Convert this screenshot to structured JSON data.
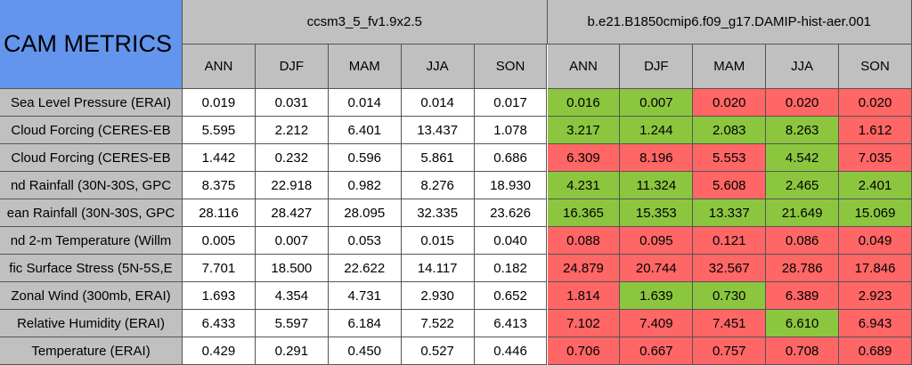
{
  "title": "CAM METRICS",
  "groups": [
    "ccsm3_5_fv1.9x2.5",
    "b.e21.B1850cmip6.f09_g17.DAMIP-hist-aer.001"
  ],
  "seasons": [
    "ANN",
    "DJF",
    "MAM",
    "JJA",
    "SON",
    "ANN",
    "DJF",
    "MAM",
    "JJA",
    "SON"
  ],
  "rows": [
    {
      "label": "Sea Level Pressure (ERAI)",
      "values": [
        "0.019",
        "0.031",
        "0.014",
        "0.014",
        "0.017",
        "0.016",
        "0.007",
        "0.020",
        "0.020",
        "0.020"
      ],
      "colors": [
        "#8cc63f",
        "#8cc63f",
        "#ff6666",
        "#ff6666",
        "#ff6666"
      ]
    },
    {
      "label": "Cloud Forcing (CERES-EB",
      "values": [
        "5.595",
        "2.212",
        "6.401",
        "13.437",
        "1.078",
        "3.217",
        "1.244",
        "2.083",
        "8.263",
        "1.612"
      ],
      "colors": [
        "#8cc63f",
        "#8cc63f",
        "#8cc63f",
        "#8cc63f",
        "#ff6666"
      ]
    },
    {
      "label": "Cloud Forcing (CERES-EB",
      "values": [
        "1.442",
        "0.232",
        "0.596",
        "5.861",
        "0.686",
        "6.309",
        "8.196",
        "5.553",
        "4.542",
        "7.035"
      ],
      "colors": [
        "#ff6666",
        "#ff6666",
        "#ff6666",
        "#8cc63f",
        "#ff6666"
      ]
    },
    {
      "label": "nd Rainfall (30N-30S, GPC",
      "values": [
        "8.375",
        "22.918",
        "0.982",
        "8.276",
        "18.930",
        "4.231",
        "11.324",
        "5.608",
        "2.465",
        "2.401"
      ],
      "colors": [
        "#8cc63f",
        "#8cc63f",
        "#ff6666",
        "#8cc63f",
        "#8cc63f"
      ]
    },
    {
      "label": "ean Rainfall (30N-30S, GPC",
      "values": [
        "28.116",
        "28.427",
        "28.095",
        "32.335",
        "23.626",
        "16.365",
        "15.353",
        "13.337",
        "21.649",
        "15.069"
      ],
      "colors": [
        "#8cc63f",
        "#8cc63f",
        "#8cc63f",
        "#8cc63f",
        "#8cc63f"
      ]
    },
    {
      "label": "nd 2-m Temperature (Willm",
      "values": [
        "0.005",
        "0.007",
        "0.053",
        "0.015",
        "0.040",
        "0.088",
        "0.095",
        "0.121",
        "0.086",
        "0.049"
      ],
      "colors": [
        "#ff6666",
        "#ff6666",
        "#ff6666",
        "#ff6666",
        "#ff6666"
      ]
    },
    {
      "label": "fic Surface Stress (5N-5S,E",
      "values": [
        "7.701",
        "18.500",
        "22.622",
        "14.117",
        "0.182",
        "24.879",
        "20.744",
        "32.567",
        "28.786",
        "17.846"
      ],
      "colors": [
        "#ff6666",
        "#ff6666",
        "#ff6666",
        "#ff6666",
        "#ff6666"
      ]
    },
    {
      "label": "Zonal Wind (300mb, ERAI)",
      "values": [
        "1.693",
        "4.354",
        "4.731",
        "2.930",
        "0.652",
        "1.814",
        "1.639",
        "0.730",
        "6.389",
        "2.923"
      ],
      "colors": [
        "#ff6666",
        "#8cc63f",
        "#8cc63f",
        "#ff6666",
        "#ff6666"
      ]
    },
    {
      "label": "Relative Humidity (ERAI)",
      "values": [
        "6.433",
        "5.597",
        "6.184",
        "7.522",
        "6.413",
        "7.102",
        "7.409",
        "7.451",
        "6.610",
        "6.943"
      ],
      "colors": [
        "#ff6666",
        "#ff6666",
        "#ff6666",
        "#8cc63f",
        "#ff6666"
      ]
    },
    {
      "label": "Temperature (ERAI)",
      "values": [
        "0.429",
        "0.291",
        "0.450",
        "0.527",
        "0.446",
        "0.706",
        "0.667",
        "0.757",
        "0.708",
        "0.689"
      ],
      "colors": [
        "#ff6666",
        "#ff6666",
        "#ff6666",
        "#ff6666",
        "#ff6666"
      ]
    }
  ]
}
